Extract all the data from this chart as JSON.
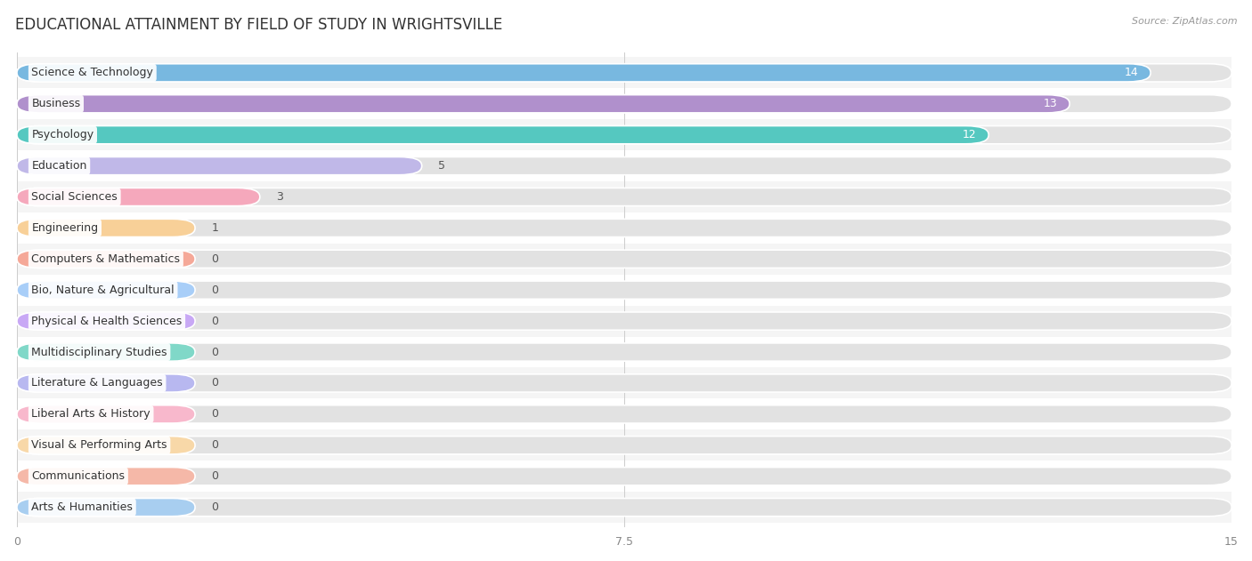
{
  "title": "EDUCATIONAL ATTAINMENT BY FIELD OF STUDY IN WRIGHTSVILLE",
  "source": "Source: ZipAtlas.com",
  "categories": [
    "Science & Technology",
    "Business",
    "Psychology",
    "Education",
    "Social Sciences",
    "Engineering",
    "Computers & Mathematics",
    "Bio, Nature & Agricultural",
    "Physical & Health Sciences",
    "Multidisciplinary Studies",
    "Literature & Languages",
    "Liberal Arts & History",
    "Visual & Performing Arts",
    "Communications",
    "Arts & Humanities"
  ],
  "values": [
    14,
    13,
    12,
    5,
    3,
    1,
    0,
    0,
    0,
    0,
    0,
    0,
    0,
    0,
    0
  ],
  "bar_colors": [
    "#78b8e0",
    "#b090cc",
    "#55c8c0",
    "#c0b8e8",
    "#f5a8bc",
    "#f8d098",
    "#f5a898",
    "#a8cef8",
    "#c8a8f5",
    "#80d8c8",
    "#b8b8f0",
    "#f8b8cc",
    "#f8d8a8",
    "#f5b8a8",
    "#a8cef0"
  ],
  "xlim": [
    0,
    15
  ],
  "xticks": [
    0,
    7.5,
    15
  ],
  "background_color": "#ffffff",
  "title_fontsize": 12,
  "label_fontsize": 9,
  "value_fontsize": 9,
  "bar_height": 0.58,
  "min_bar_width": 2.2,
  "row_colors": [
    "#f5f5f5",
    "#ffffff"
  ]
}
